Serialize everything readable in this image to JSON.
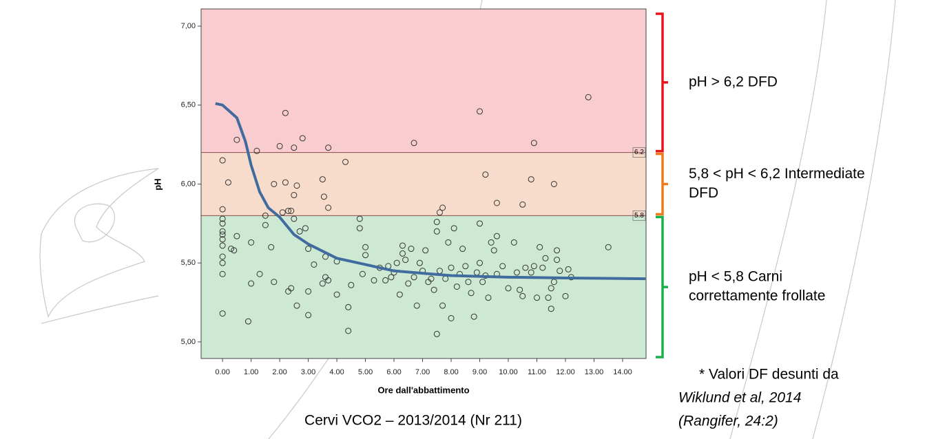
{
  "chart_data": {
    "type": "scatter",
    "xlabel": "Ore dall'abbattimento",
    "ylabel": "pH",
    "caption": "Cervi VCO2 – 2013/2014 (Nr 211)",
    "xlim": [
      -0.75,
      14.82
    ],
    "ylim": [
      4.895,
      7.109
    ],
    "xticks": [
      {
        "value": 0,
        "label": "0.00"
      },
      {
        "value": 1,
        "label": "1.00"
      },
      {
        "value": 2,
        "label": "2.00"
      },
      {
        "value": 3,
        "label": "3.00"
      },
      {
        "value": 4,
        "label": "4.00"
      },
      {
        "value": 5,
        "label": "5.00"
      },
      {
        "value": 6,
        "label": "6.00"
      },
      {
        "value": 7,
        "label": "7.00"
      },
      {
        "value": 8,
        "label": "8.00"
      },
      {
        "value": 9,
        "label": "9.00"
      },
      {
        "value": 10,
        "label": "10.00"
      },
      {
        "value": 11,
        "label": "11.00"
      },
      {
        "value": 12,
        "label": "12.00"
      },
      {
        "value": 13,
        "label": "13.00"
      },
      {
        "value": 14,
        "label": "14.00"
      }
    ],
    "yticks": [
      {
        "value": 5,
        "label": "5,00"
      },
      {
        "value": 5.5,
        "label": "5,50"
      },
      {
        "value": 6,
        "label": "6,00"
      },
      {
        "value": 6.5,
        "label": "6,50"
      },
      {
        "value": 7,
        "label": "7,00"
      }
    ],
    "thresholds": [
      {
        "value": 6.2,
        "label": "6.2"
      },
      {
        "value": 5.8,
        "label": "5.8"
      }
    ],
    "band_colors": [
      "#f9cdcf",
      "#f8dccb",
      "#cde9d4"
    ],
    "bracket_colors": [
      "#e8141c",
      "#ef7a1a",
      "#17b04a"
    ],
    "annotations": [
      [
        "pH > 6,2 DFD"
      ],
      [
        "5,8 < pH < 6,2 Intermediate",
        "DFD"
      ],
      [
        "pH < 5,8 Carni",
        "correttamente frollate"
      ]
    ],
    "note": [
      "* Valori DF desunti da",
      "Wiklund et al, 2014",
      "(Rangifer, 24:2)"
    ],
    "fit": {
      "color": "#3f6b9e",
      "x": [
        -0.25,
        0,
        0.5,
        0.8,
        1.0,
        1.3,
        1.6,
        2.0,
        2.5,
        3.0,
        4.0,
        5.0,
        6.0,
        8.0,
        10.0,
        12.0,
        14.8
      ],
      "y": [
        6.51,
        6.5,
        6.42,
        6.27,
        6.12,
        5.95,
        5.85,
        5.79,
        5.68,
        5.62,
        5.53,
        5.49,
        5.45,
        5.42,
        5.41,
        5.405,
        5.4
      ]
    },
    "points": {
      "color": "#333333",
      "x": [
        0.5,
        1.2,
        2.0,
        2.2,
        2.5,
        2.8,
        3.7,
        6.7,
        9.0,
        10.9,
        12.8,
        0,
        0.2,
        1.8,
        2.2,
        2.5,
        2.6,
        3.5,
        3.55,
        3.7,
        4.3,
        2.1,
        2.3,
        2.4,
        9.2,
        9.6,
        10.5,
        10.8,
        11.6,
        7.6,
        7.7,
        0,
        0,
        0,
        0,
        0,
        0,
        0,
        0,
        0,
        0,
        0,
        0.3,
        0.4,
        0.5,
        0.9,
        1.0,
        1.0,
        1.3,
        1.5,
        1.5,
        1.7,
        1.8,
        2.3,
        2.4,
        2.6,
        2.5,
        2.7,
        2.9,
        3.0,
        3.0,
        3.0,
        3.2,
        3.5,
        3.6,
        3.6,
        3.7,
        4.0,
        4.0,
        4.4,
        4.4,
        4.5,
        4.8,
        4.8,
        4.9,
        5.0,
        5.0,
        5.3,
        5.5,
        5.7,
        5.8,
        5.9,
        6.0,
        6.1,
        6.2,
        6.3,
        6.3,
        6.4,
        6.5,
        6.6,
        6.7,
        6.8,
        6.9,
        7.0,
        7.1,
        7.2,
        7.3,
        7.4,
        7.5,
        7.5,
        7.5,
        7.6,
        7.7,
        7.8,
        7.9,
        8.0,
        8.0,
        8.1,
        8.2,
        8.3,
        8.4,
        8.5,
        8.6,
        8.7,
        8.8,
        8.9,
        9.0,
        9.0,
        9.1,
        9.2,
        9.3,
        9.4,
        9.5,
        9.6,
        9.6,
        9.8,
        10.0,
        10.2,
        10.3,
        10.4,
        10.5,
        10.6,
        10.8,
        10.9,
        11.0,
        11.1,
        11.2,
        11.3,
        11.5,
        11.6,
        11.7,
        11.8,
        12.0,
        12.1,
        12.2,
        13.5,
        11.5,
        11.4,
        11.7
      ],
      "y": [
        6.28,
        6.21,
        6.24,
        6.45,
        6.23,
        6.29,
        6.23,
        6.26,
        6.46,
        6.26,
        6.55,
        6.15,
        6.01,
        6.0,
        6.01,
        5.93,
        5.99,
        6.03,
        5.92,
        5.85,
        6.14,
        5.82,
        5.83,
        5.83,
        6.06,
        5.88,
        5.87,
        6.03,
        6.0,
        5.82,
        5.85,
        5.84,
        5.78,
        5.75,
        5.7,
        5.68,
        5.65,
        5.61,
        5.54,
        5.5,
        5.43,
        5.18,
        5.59,
        5.58,
        5.67,
        5.13,
        5.63,
        5.37,
        5.43,
        5.8,
        5.74,
        5.6,
        5.38,
        5.32,
        5.34,
        5.23,
        5.78,
        5.7,
        5.72,
        5.17,
        5.32,
        5.59,
        5.49,
        5.37,
        5.41,
        5.54,
        5.39,
        5.51,
        5.3,
        5.07,
        5.22,
        5.36,
        5.72,
        5.78,
        5.43,
        5.55,
        5.6,
        5.39,
        5.47,
        5.39,
        5.48,
        5.41,
        5.44,
        5.5,
        5.3,
        5.61,
        5.56,
        5.52,
        5.37,
        5.59,
        5.41,
        5.23,
        5.5,
        5.45,
        5.58,
        5.38,
        5.4,
        5.33,
        5.05,
        5.76,
        5.7,
        5.45,
        5.23,
        5.4,
        5.63,
        5.15,
        5.47,
        5.72,
        5.35,
        5.43,
        5.59,
        5.48,
        5.38,
        5.31,
        5.16,
        5.44,
        5.75,
        5.5,
        5.38,
        5.42,
        5.28,
        5.63,
        5.58,
        5.67,
        5.43,
        5.48,
        5.34,
        5.63,
        5.44,
        5.33,
        5.29,
        5.47,
        5.44,
        5.48,
        5.28,
        5.6,
        5.47,
        5.53,
        5.34,
        5.38,
        5.58,
        5.45,
        5.29,
        5.46,
        5.41,
        5.6,
        5.21,
        5.28,
        5.52
      ]
    }
  }
}
